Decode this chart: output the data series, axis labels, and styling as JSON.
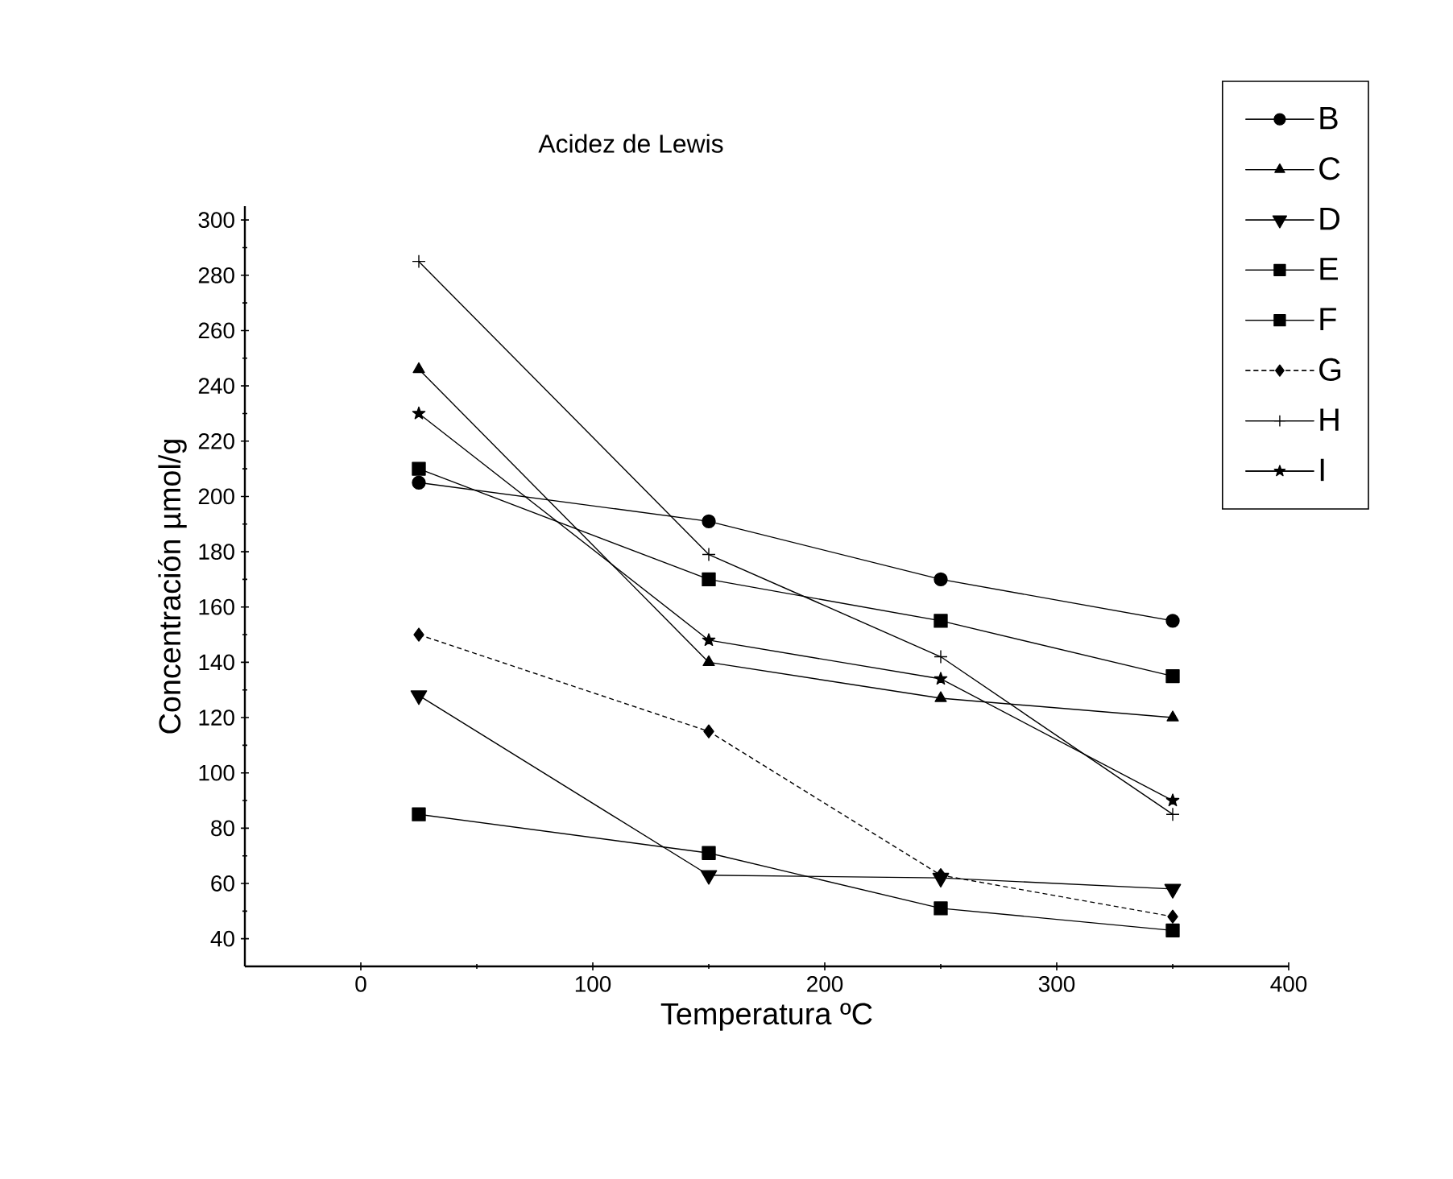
{
  "chart_data": {
    "type": "line",
    "title": "Acidez de Lewis",
    "xlabel": "Temperatura ºC",
    "ylabel": "Concentración µmol/g",
    "xlim": [
      -50,
      400
    ],
    "xticks": [
      0,
      100,
      200,
      300,
      400
    ],
    "ylim": [
      30,
      305
    ],
    "yticks": [
      40,
      60,
      80,
      100,
      120,
      140,
      160,
      180,
      200,
      220,
      240,
      260,
      280,
      300
    ],
    "x": [
      25,
      150,
      250,
      350
    ],
    "grid": false,
    "legend": "top right",
    "line_style": "solid",
    "series": [
      {
        "name": "B",
        "color": "#000000",
        "marker": "circle",
        "values": [
          205,
          191,
          170,
          155
        ]
      },
      {
        "name": "C",
        "color": "#000000",
        "marker": "triangle",
        "values": [
          246,
          140,
          127,
          120
        ]
      },
      {
        "name": "D",
        "color": "#000000",
        "marker": "triangle down",
        "values": [
          128,
          63,
          62,
          58
        ]
      },
      {
        "name": "E",
        "color": "#000000",
        "marker": "square",
        "values": [
          210,
          170,
          155,
          135
        ]
      },
      {
        "name": "F",
        "color": "#000000",
        "marker": "square",
        "values": [
          85,
          71,
          51,
          43
        ]
      },
      {
        "name": "G",
        "color": "#000000",
        "marker": "diamond",
        "line_style": "dashed",
        "values": [
          150,
          115,
          63,
          48
        ]
      },
      {
        "name": "H",
        "color": "#000000",
        "marker": "cross",
        "values": [
          285,
          179,
          142,
          85
        ]
      },
      {
        "name": "I",
        "color": "#000000",
        "marker": "star",
        "values": [
          230,
          148,
          134,
          90
        ]
      }
    ]
  }
}
